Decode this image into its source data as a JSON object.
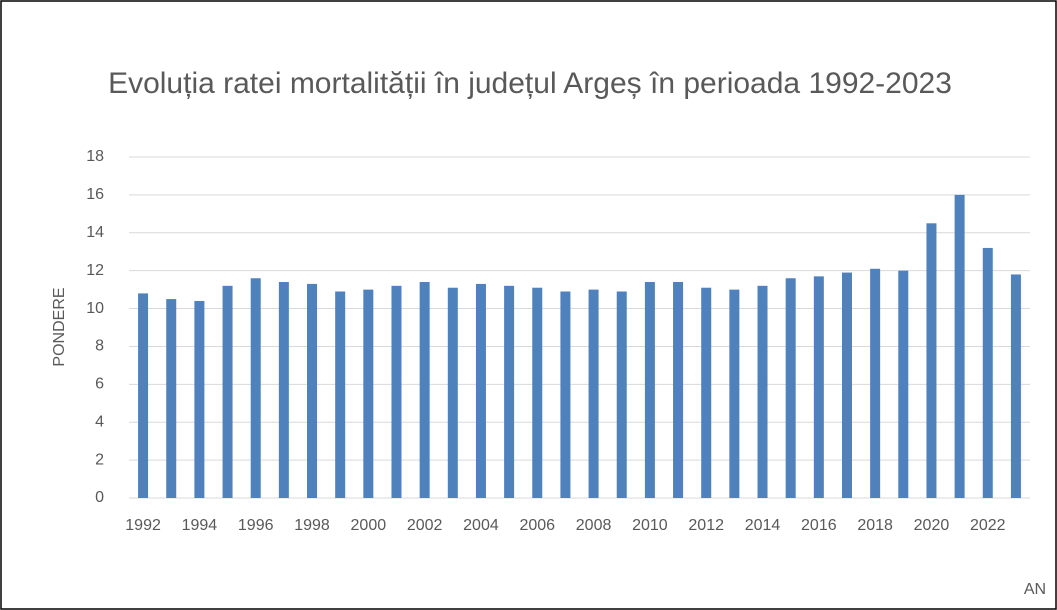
{
  "chart_data": {
    "type": "bar",
    "title": "Evoluția ratei mortalității în județul Argeș în perioada 1992-2023",
    "x_label": "AN",
    "y_label": "PONDERE",
    "categories": [
      "1992",
      null,
      "1994",
      null,
      "1996",
      null,
      "1998",
      null,
      "2000",
      null,
      "2002",
      null,
      "2004",
      null,
      "2006",
      null,
      "2008",
      null,
      "2010",
      null,
      "2012",
      null,
      "2014",
      null,
      "2016",
      null,
      "2018",
      null,
      "2020",
      null,
      "2022",
      null
    ],
    "values": [
      10.8,
      10.5,
      10.4,
      11.2,
      11.6,
      11.4,
      11.3,
      10.9,
      11.0,
      11.2,
      11.4,
      11.1,
      11.3,
      11.2,
      11.1,
      10.9,
      11.0,
      10.9,
      11.4,
      11.4,
      11.1,
      11.0,
      11.2,
      11.6,
      11.7,
      11.9,
      12.1,
      12.0,
      14.5,
      16.0,
      13.2,
      11.8
    ],
    "color": "#4f81bd",
    "ylim": [
      0,
      18
    ],
    "yticks": [
      0,
      2,
      4,
      6,
      8,
      10,
      12,
      14,
      16,
      18
    ],
    "grid": true
  }
}
